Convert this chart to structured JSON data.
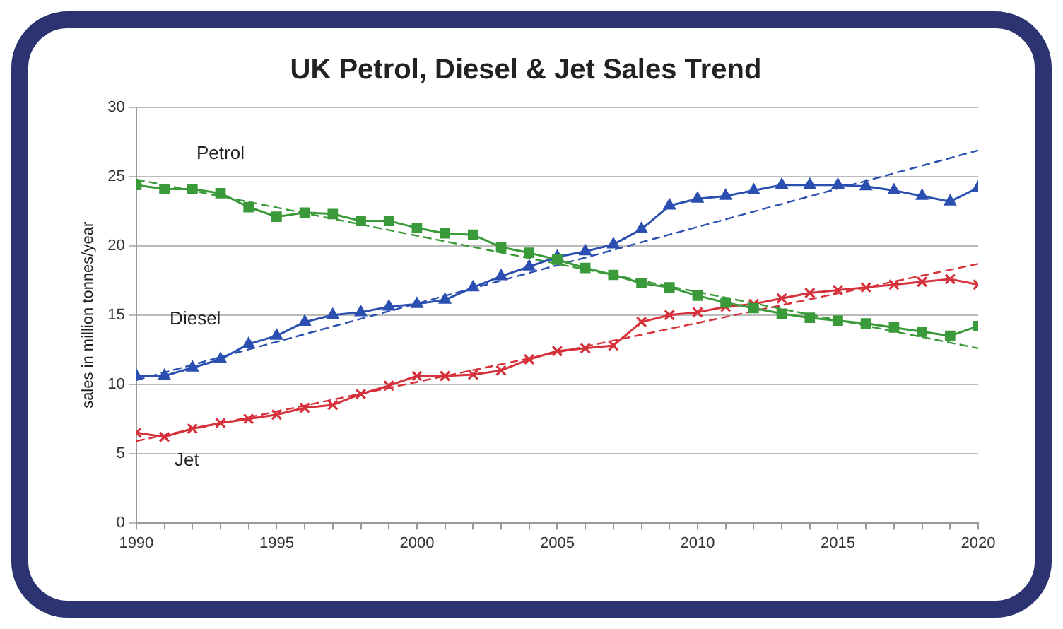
{
  "chart_data": {
    "type": "line",
    "title": "UK Petrol, Diesel & Jet Sales Trend",
    "ylabel": "sales in million tonnes/year",
    "x": [
      1990,
      1991,
      1992,
      1993,
      1994,
      1995,
      1996,
      1997,
      1998,
      1999,
      2000,
      2001,
      2002,
      2003,
      2004,
      2005,
      2006,
      2007,
      2008,
      2009,
      2010,
      2011,
      2012,
      2013,
      2014,
      2015,
      2016,
      2017,
      2018,
      2019,
      2020
    ],
    "xlim": [
      1990,
      2020
    ],
    "xticks": [
      1990,
      {
        "value": 1991,
        "label": null
      },
      {
        "value": 1992,
        "label": null
      },
      {
        "value": 1993,
        "label": null
      },
      {
        "value": 1994,
        "label": null
      },
      1995,
      {
        "value": 1996,
        "label": null
      },
      {
        "value": 1997,
        "label": null
      },
      {
        "value": 1998,
        "label": null
      },
      {
        "value": 1999,
        "label": null
      },
      2000,
      {
        "value": 2001,
        "label": null
      },
      {
        "value": 2002,
        "label": null
      },
      {
        "value": 2003,
        "label": null
      },
      {
        "value": 2004,
        "label": null
      },
      2005,
      {
        "value": 2006,
        "label": null
      },
      {
        "value": 2007,
        "label": null
      },
      {
        "value": 2008,
        "label": null
      },
      {
        "value": 2009,
        "label": null
      },
      2010,
      {
        "value": 2011,
        "label": null
      },
      {
        "value": 2012,
        "label": null
      },
      {
        "value": 2013,
        "label": null
      },
      {
        "value": 2014,
        "label": null
      },
      2015,
      {
        "value": 2016,
        "label": null
      },
      {
        "value": 2017,
        "label": null
      },
      {
        "value": 2018,
        "label": null
      },
      {
        "value": 2019,
        "label": null
      },
      2020
    ],
    "ylim": [
      0,
      30
    ],
    "yticks": [
      0,
      5,
      10,
      15,
      20,
      25,
      30
    ],
    "grid": "y",
    "legend": false,
    "series": [
      {
        "name": "Petrol",
        "color": "#3a9a3a",
        "marker": "square",
        "values": [
          24.4,
          24.1,
          24.1,
          23.8,
          22.8,
          22.1,
          22.4,
          22.3,
          21.8,
          21.8,
          21.3,
          20.9,
          20.8,
          19.9,
          19.5,
          19.0,
          18.4,
          17.9,
          17.3,
          17.0,
          16.4,
          15.9,
          15.5,
          15.1,
          14.8,
          14.6,
          14.4,
          14.1,
          13.8,
          13.5,
          14.2
        ]
      },
      {
        "name": "Diesel",
        "color": "#2a4fb0",
        "marker": "triangle",
        "values": [
          10.6,
          10.6,
          11.2,
          11.8,
          12.9,
          13.5,
          14.5,
          15.0,
          15.2,
          15.6,
          15.8,
          16.1,
          17.0,
          17.8,
          18.5,
          19.2,
          19.6,
          20.1,
          21.2,
          22.9,
          23.4,
          23.6,
          24.0,
          24.4,
          24.4,
          24.4,
          24.3,
          24.0,
          23.6,
          23.2,
          24.2
        ]
      },
      {
        "name": "Jet",
        "color": "#d6303a",
        "marker": "cross",
        "values": [
          6.5,
          6.2,
          6.8,
          7.2,
          7.5,
          7.8,
          8.3,
          8.5,
          9.3,
          9.9,
          10.6,
          10.6,
          10.7,
          11.0,
          11.8,
          12.4,
          12.6,
          12.8,
          14.5,
          15.0,
          15.2,
          15.6,
          15.8,
          16.2,
          16.6,
          16.8,
          17.0,
          17.2,
          17.4,
          17.6,
          17.2
        ]
      },
      {
        "type": "line",
        "color": "#3a9a3a",
        "marker": "none",
        "line_style": "dashed",
        "values": [
          24.8,
          null,
          null,
          null,
          null,
          null,
          null,
          null,
          null,
          null,
          null,
          null,
          null,
          null,
          null,
          null,
          null,
          null,
          null,
          null,
          null,
          null,
          null,
          null,
          null,
          null,
          null,
          null,
          null,
          null,
          12.6
        ]
      },
      {
        "type": "line",
        "color": "#2a4fb0",
        "marker": "none",
        "line_style": "dashed",
        "values": [
          10.3,
          null,
          null,
          null,
          null,
          null,
          null,
          null,
          null,
          null,
          null,
          null,
          null,
          null,
          null,
          null,
          null,
          null,
          null,
          null,
          null,
          null,
          null,
          null,
          null,
          null,
          null,
          null,
          null,
          null,
          26.9
        ]
      },
      {
        "type": "line",
        "color": "#d6303a",
        "marker": "none",
        "line_style": "dashed",
        "values": [
          5.9,
          null,
          null,
          null,
          null,
          null,
          null,
          null,
          null,
          null,
          null,
          null,
          null,
          null,
          null,
          null,
          null,
          null,
          null,
          null,
          null,
          null,
          null,
          null,
          null,
          null,
          null,
          null,
          null,
          null,
          18.7
        ]
      }
    ]
  }
}
